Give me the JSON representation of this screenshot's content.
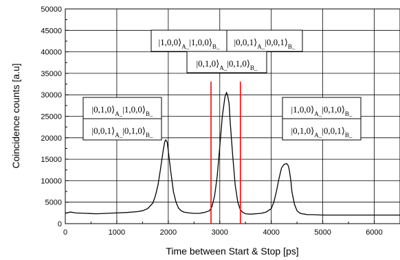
{
  "chart_data": {
    "type": "line",
    "title": "",
    "xlabel": "Time between Start & Stop [ps]",
    "ylabel": "Coincidence counts [a.u]",
    "xlim": [
      0,
      6500
    ],
    "ylim": [
      0,
      50000
    ],
    "x_ticks": [
      0,
      1000,
      2000,
      3000,
      4000,
      5000,
      6000
    ],
    "y_ticks": [
      0,
      5000,
      10000,
      15000,
      20000,
      25000,
      30000,
      35000,
      40000,
      45000,
      50000
    ],
    "grid": true,
    "series": [
      {
        "color": "#000000",
        "x": [
          0,
          100,
          200,
          400,
          600,
          800,
          1000,
          1200,
          1400,
          1500,
          1600,
          1700,
          1750,
          1800,
          1850,
          1900,
          1930,
          1950,
          1980,
          2000,
          2050,
          2100,
          2150,
          2200,
          2250,
          2300,
          2400,
          2500,
          2600,
          2700,
          2800,
          2850,
          2900,
          2950,
          3000,
          3050,
          3100,
          3130,
          3150,
          3180,
          3200,
          3250,
          3300,
          3350,
          3400,
          3450,
          3500,
          3600,
          3700,
          3800,
          3900,
          4000,
          4050,
          4100,
          4150,
          4200,
          4250,
          4300,
          4330,
          4350,
          4380,
          4400,
          4450,
          4500,
          4550,
          4600,
          4650,
          4700,
          4800,
          5000,
          5500,
          6000,
          6500
        ],
        "y": [
          2400,
          2700,
          2500,
          2400,
          2300,
          2400,
          2500,
          2600,
          2800,
          3000,
          3500,
          4800,
          6500,
          9000,
          12800,
          17000,
          19000,
          19500,
          19000,
          17000,
          12000,
          7500,
          5000,
          3600,
          3000,
          2700,
          2500,
          2400,
          2400,
          2600,
          3000,
          4000,
          6500,
          11000,
          18000,
          25000,
          29500,
          30500,
          30000,
          28000,
          24000,
          16000,
          9000,
          5000,
          3200,
          2600,
          2300,
          2200,
          2300,
          2400,
          2700,
          3500,
          5000,
          7500,
          10500,
          13000,
          13800,
          14000,
          13500,
          12500,
          10000,
          7500,
          4500,
          3000,
          2500,
          2300,
          2200,
          2100,
          2100,
          2000,
          2000,
          2000,
          2000
        ]
      }
    ],
    "vlines": {
      "color": "#ff0000",
      "x": [
        2830,
        3400
      ]
    },
    "annotations": [
      {
        "kets": [
          "|0,1,0⟩_{A_}|1,0,0⟩_{B_}",
          "|0,0,1⟩_{A_}|0,1,0⟩_{B_}"
        ]
      },
      {
        "kets": [
          "|1,0,0⟩_{A_}|1,0,0⟩_{B_}",
          "|0,0,1⟩_{A_}|0,0,1⟩_{B_}",
          "|0,1,0⟩_{A_}|0,1,0⟩_{B_}"
        ]
      },
      {
        "kets": [
          "|1,0,0⟩_{A_}|0,1,0⟩_{B_}",
          "|0,1,0⟩_{A_}|0,0,1⟩_{B_}"
        ]
      }
    ]
  }
}
